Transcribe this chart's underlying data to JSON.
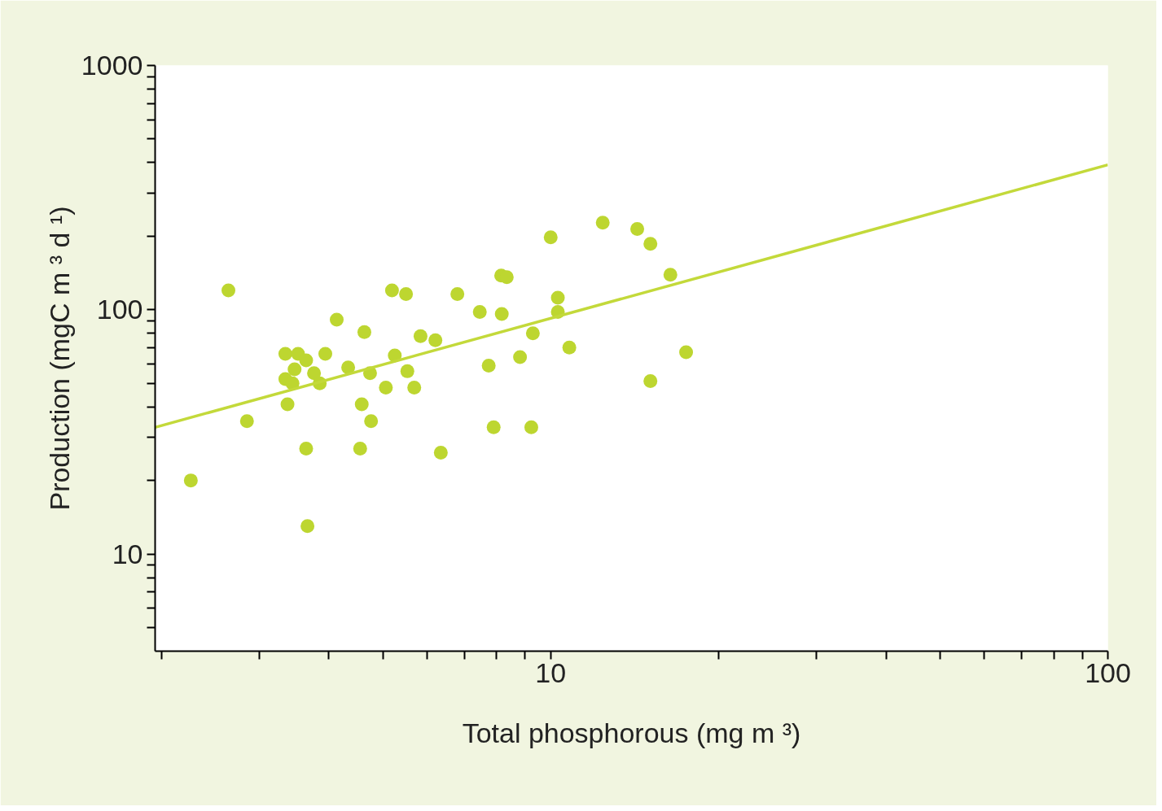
{
  "chart_data": {
    "type": "scatter",
    "xlabel": "Total phosphorous (mg m ³)",
    "ylabel": "Production (mgC m ³ d ¹)",
    "log": "xy",
    "grid": false,
    "marker": "circle",
    "xlim": [
      1.95,
      100
    ],
    "ylim": [
      4,
      1000
    ],
    "xticks": [
      {
        "value": 2,
        "label": null
      },
      {
        "value": 3,
        "label": null
      },
      {
        "value": 4,
        "label": null
      },
      {
        "value": 5,
        "label": null
      },
      {
        "value": 6,
        "label": null
      },
      {
        "value": 7,
        "label": null
      },
      {
        "value": 8,
        "label": null
      },
      {
        "value": 9,
        "label": null
      },
      10,
      {
        "value": 20,
        "label": null
      },
      {
        "value": 30,
        "label": null
      },
      {
        "value": 40,
        "label": null
      },
      {
        "value": 50,
        "label": null
      },
      {
        "value": 60,
        "label": null
      },
      {
        "value": 70,
        "label": null
      },
      {
        "value": 80,
        "label": null
      },
      {
        "value": 90,
        "label": null
      },
      100
    ],
    "yticks": [
      {
        "value": 5,
        "label": null
      },
      {
        "value": 6,
        "label": null
      },
      {
        "value": 7,
        "label": null
      },
      {
        "value": 8,
        "label": null
      },
      {
        "value": 9,
        "label": null
      },
      10,
      {
        "value": 20,
        "label": null
      },
      {
        "value": 30,
        "label": null
      },
      {
        "value": 40,
        "label": null
      },
      {
        "value": 50,
        "label": null
      },
      {
        "value": 60,
        "label": null
      },
      {
        "value": 70,
        "label": null
      },
      {
        "value": 80,
        "label": null
      },
      {
        "value": 90,
        "label": null
      },
      100,
      {
        "value": 200,
        "label": null
      },
      {
        "value": 300,
        "label": null
      },
      {
        "value": 400,
        "label": null
      },
      {
        "value": 500,
        "label": null
      },
      {
        "value": 600,
        "label": null
      },
      {
        "value": 700,
        "label": null
      },
      {
        "value": 800,
        "label": null
      },
      {
        "value": 900,
        "label": null
      },
      1000
    ],
    "series": [
      {
        "color": "#bdd630",
        "x": [
          2.26,
          2.64,
          2.85,
          3.34,
          3.34,
          3.37,
          3.47,
          3.44,
          3.52,
          3.64,
          3.64,
          3.66,
          3.76,
          3.85,
          3.94,
          4.13,
          4.33,
          4.55,
          4.58,
          4.63,
          4.74,
          4.76,
          5.06,
          5.19,
          5.25,
          5.5,
          5.53,
          5.69,
          5.84,
          6.21,
          6.35,
          6.8,
          7.46,
          7.74,
          7.9,
          8.15,
          8.17,
          8.34,
          8.81,
          9.23,
          9.29,
          10.0,
          10.3,
          10.3,
          10.8,
          12.4,
          14.3,
          15.1,
          15.1,
          16.4,
          17.5
        ],
        "values": [
          20,
          120,
          35,
          66,
          52,
          41,
          57,
          50,
          66,
          62,
          27,
          13,
          55,
          50,
          66,
          91,
          58,
          27,
          41,
          81,
          55,
          35,
          48,
          120,
          65,
          116,
          56,
          48,
          78,
          75,
          26,
          116,
          98,
          59,
          33,
          138,
          96,
          136,
          64,
          33,
          80,
          198,
          112,
          98,
          70,
          227,
          214,
          186,
          51,
          139,
          67
        ]
      },
      {
        "type": "line",
        "color": "#c3d93a",
        "marker": "none",
        "x": [
          1.95,
          100
        ],
        "values": [
          33,
          392
        ]
      }
    ]
  }
}
